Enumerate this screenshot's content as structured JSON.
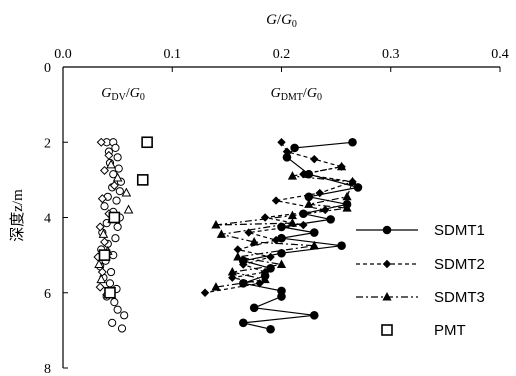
{
  "chart_data": {
    "type": "scatter",
    "xlabel": "G/G0",
    "ylabel": "深度z/m",
    "x_axis_position": "top",
    "y_axis_inverted": true,
    "xlim": [
      0,
      0.4
    ],
    "ylim": [
      0,
      8
    ],
    "x_ticks": [
      "0.0",
      "0.1",
      "0.2",
      "0.3",
      "0.4"
    ],
    "y_ticks": [
      "0",
      "2",
      "4",
      "6",
      "8"
    ],
    "grid": false,
    "legend_position": "right",
    "annotations": [
      {
        "text": "GDV/G0",
        "x": 0.035,
        "y": 0.75
      },
      {
        "text": "GDMT/G0",
        "x": 0.19,
        "y": 0.75
      }
    ],
    "series": [
      {
        "name": "SDMT1",
        "style": "solid",
        "marker": "circle",
        "points": [
          {
            "x": 0.265,
            "y": 2.0
          },
          {
            "x": 0.212,
            "y": 2.15
          },
          {
            "x": 0.205,
            "y": 2.4
          },
          {
            "x": 0.225,
            "y": 2.85
          },
          {
            "x": 0.27,
            "y": 3.2
          },
          {
            "x": 0.225,
            "y": 3.45
          },
          {
            "x": 0.26,
            "y": 3.65
          },
          {
            "x": 0.22,
            "y": 3.9
          },
          {
            "x": 0.245,
            "y": 4.05
          },
          {
            "x": 0.2,
            "y": 4.25
          },
          {
            "x": 0.23,
            "y": 4.4
          },
          {
            "x": 0.2,
            "y": 4.55
          },
          {
            "x": 0.255,
            "y": 4.75
          },
          {
            "x": 0.2,
            "y": 4.95
          },
          {
            "x": 0.165,
            "y": 5.15
          },
          {
            "x": 0.19,
            "y": 5.35
          },
          {
            "x": 0.185,
            "y": 5.55
          },
          {
            "x": 0.165,
            "y": 5.75
          },
          {
            "x": 0.2,
            "y": 5.95
          },
          {
            "x": 0.2,
            "y": 6.1
          },
          {
            "x": 0.175,
            "y": 6.4
          },
          {
            "x": 0.23,
            "y": 6.6
          },
          {
            "x": 0.165,
            "y": 6.8
          },
          {
            "x": 0.19,
            "y": 6.97
          }
        ]
      },
      {
        "name": "SDMT2",
        "style": "dashed",
        "marker": "diamond",
        "points": [
          {
            "x": 0.2,
            "y": 2.0
          },
          {
            "x": 0.205,
            "y": 2.25
          },
          {
            "x": 0.23,
            "y": 2.45
          },
          {
            "x": 0.255,
            "y": 2.65
          },
          {
            "x": 0.22,
            "y": 2.85
          },
          {
            "x": 0.265,
            "y": 3.05
          },
          {
            "x": 0.235,
            "y": 3.35
          },
          {
            "x": 0.195,
            "y": 3.55
          },
          {
            "x": 0.24,
            "y": 3.8
          },
          {
            "x": 0.185,
            "y": 4.0
          },
          {
            "x": 0.22,
            "y": 4.2
          },
          {
            "x": 0.17,
            "y": 4.4
          },
          {
            "x": 0.195,
            "y": 4.6
          },
          {
            "x": 0.16,
            "y": 4.85
          },
          {
            "x": 0.19,
            "y": 5.05
          },
          {
            "x": 0.165,
            "y": 5.25
          },
          {
            "x": 0.185,
            "y": 5.45
          },
          {
            "x": 0.155,
            "y": 5.6
          },
          {
            "x": 0.18,
            "y": 5.75
          },
          {
            "x": 0.13,
            "y": 6.0
          }
        ]
      },
      {
        "name": "SDMT3",
        "style": "dashdot",
        "marker": "triangle",
        "points": [
          {
            "x": 0.255,
            "y": 2.65
          },
          {
            "x": 0.21,
            "y": 2.9
          },
          {
            "x": 0.265,
            "y": 3.05
          },
          {
            "x": 0.26,
            "y": 3.45
          },
          {
            "x": 0.225,
            "y": 3.65
          },
          {
            "x": 0.26,
            "y": 3.75
          },
          {
            "x": 0.21,
            "y": 3.95
          },
          {
            "x": 0.14,
            "y": 4.2
          },
          {
            "x": 0.21,
            "y": 4.15
          },
          {
            "x": 0.145,
            "y": 4.45
          },
          {
            "x": 0.175,
            "y": 4.65
          },
          {
            "x": 0.23,
            "y": 4.75
          },
          {
            "x": 0.16,
            "y": 5.05
          },
          {
            "x": 0.2,
            "y": 5.25
          },
          {
            "x": 0.155,
            "y": 5.45
          },
          {
            "x": 0.185,
            "y": 5.65
          },
          {
            "x": 0.14,
            "y": 5.85
          }
        ]
      },
      {
        "name": "GDV/G0",
        "style": "none",
        "marker": "circle-open",
        "points": [
          {
            "x": 0.04,
            "y": 2.0
          },
          {
            "x": 0.046,
            "y": 2.0
          },
          {
            "x": 0.048,
            "y": 2.15
          },
          {
            "x": 0.042,
            "y": 2.25
          },
          {
            "x": 0.05,
            "y": 2.4
          },
          {
            "x": 0.043,
            "y": 2.55
          },
          {
            "x": 0.051,
            "y": 2.7
          },
          {
            "x": 0.046,
            "y": 2.85
          },
          {
            "x": 0.053,
            "y": 3.05
          },
          {
            "x": 0.045,
            "y": 3.2
          },
          {
            "x": 0.052,
            "y": 3.3
          },
          {
            "x": 0.041,
            "y": 3.45
          },
          {
            "x": 0.049,
            "y": 3.55
          },
          {
            "x": 0.038,
            "y": 3.7
          },
          {
            "x": 0.046,
            "y": 3.85
          },
          {
            "x": 0.052,
            "y": 4.0
          },
          {
            "x": 0.04,
            "y": 4.15
          },
          {
            "x": 0.05,
            "y": 4.25
          },
          {
            "x": 0.036,
            "y": 4.4
          },
          {
            "x": 0.048,
            "y": 4.55
          },
          {
            "x": 0.041,
            "y": 4.7
          },
          {
            "x": 0.035,
            "y": 4.85
          },
          {
            "x": 0.046,
            "y": 5.0
          },
          {
            "x": 0.039,
            "y": 5.15
          },
          {
            "x": 0.034,
            "y": 5.3
          },
          {
            "x": 0.044,
            "y": 5.45
          },
          {
            "x": 0.037,
            "y": 5.6
          },
          {
            "x": 0.043,
            "y": 5.75
          },
          {
            "x": 0.049,
            "y": 5.9
          },
          {
            "x": 0.04,
            "y": 6.1
          },
          {
            "x": 0.047,
            "y": 6.25
          },
          {
            "x": 0.05,
            "y": 6.45
          },
          {
            "x": 0.056,
            "y": 6.6
          },
          {
            "x": 0.045,
            "y": 6.8
          },
          {
            "x": 0.054,
            "y": 6.95
          }
        ]
      },
      {
        "name": "GDV/G0 diamonds",
        "style": "none",
        "marker": "diamond-open",
        "points": [
          {
            "x": 0.035,
            "y": 2.0
          },
          {
            "x": 0.042,
            "y": 2.35
          },
          {
            "x": 0.038,
            "y": 2.75
          },
          {
            "x": 0.047,
            "y": 3.15
          },
          {
            "x": 0.036,
            "y": 3.5
          },
          {
            "x": 0.042,
            "y": 3.9
          },
          {
            "x": 0.034,
            "y": 4.25
          },
          {
            "x": 0.038,
            "y": 4.65
          },
          {
            "x": 0.032,
            "y": 5.05
          },
          {
            "x": 0.036,
            "y": 5.45
          },
          {
            "x": 0.034,
            "y": 5.85
          },
          {
            "x": 0.04,
            "y": 6.05
          }
        ]
      },
      {
        "name": "GDV/G0 triangles",
        "style": "none",
        "marker": "triangle-open",
        "points": [
          {
            "x": 0.044,
            "y": 2.6
          },
          {
            "x": 0.05,
            "y": 2.95
          },
          {
            "x": 0.058,
            "y": 3.35
          },
          {
            "x": 0.06,
            "y": 3.8
          },
          {
            "x": 0.045,
            "y": 4.05
          },
          {
            "x": 0.037,
            "y": 4.45
          },
          {
            "x": 0.041,
            "y": 4.9
          },
          {
            "x": 0.033,
            "y": 5.25
          },
          {
            "x": 0.035,
            "y": 5.65
          }
        ]
      },
      {
        "name": "PMT",
        "style": "none",
        "marker": "square-open",
        "points": [
          {
            "x": 0.077,
            "y": 2.0
          },
          {
            "x": 0.073,
            "y": 3.0
          },
          {
            "x": 0.047,
            "y": 4.0
          },
          {
            "x": 0.038,
            "y": 5.0
          },
          {
            "x": 0.043,
            "y": 6.0
          }
        ]
      }
    ],
    "legend": [
      "SDMT1",
      "SDMT2",
      "SDMT3",
      "PMT"
    ]
  }
}
